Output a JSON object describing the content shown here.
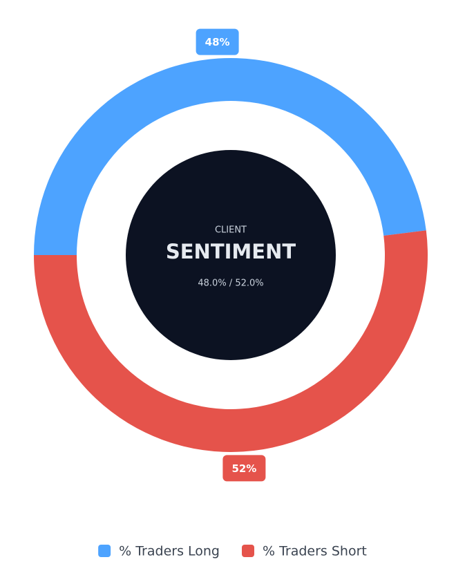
{
  "chart_data": {
    "type": "doughnut",
    "annotations": [
      "CLIENT",
      "SENTIMENT",
      "48.0% / 52.0%"
    ],
    "categories": [
      "% Traders Long",
      "% Traders Short"
    ],
    "values": [
      48,
      52
    ],
    "value_labels": [
      "48%",
      "52%"
    ],
    "colors": [
      "#4da3ff",
      "#e5534b"
    ],
    "center_color": "#0c1222",
    "legend": "bottom"
  }
}
